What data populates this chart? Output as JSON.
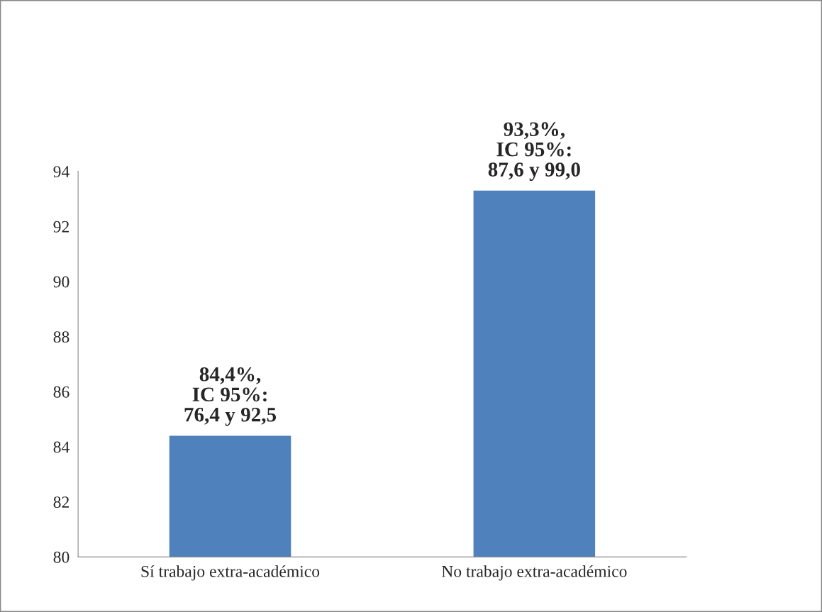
{
  "chart_data": {
    "type": "bar",
    "categories": [
      "Sí trabajo extra-académico",
      "No trabajo extra-académico"
    ],
    "values": [
      84.4,
      93.3
    ],
    "value_labels": [
      "84,4%,\nIC 95%:\n76,4 y 92,5",
      "93,3%,\nIC 95%:\n87,6 y 99,0"
    ],
    "color": "#4f81bd",
    "ylim": [
      80,
      94
    ],
    "yticks": [
      80,
      82,
      84,
      86,
      88,
      90,
      92,
      94
    ],
    "grid": false,
    "legend": false
  }
}
